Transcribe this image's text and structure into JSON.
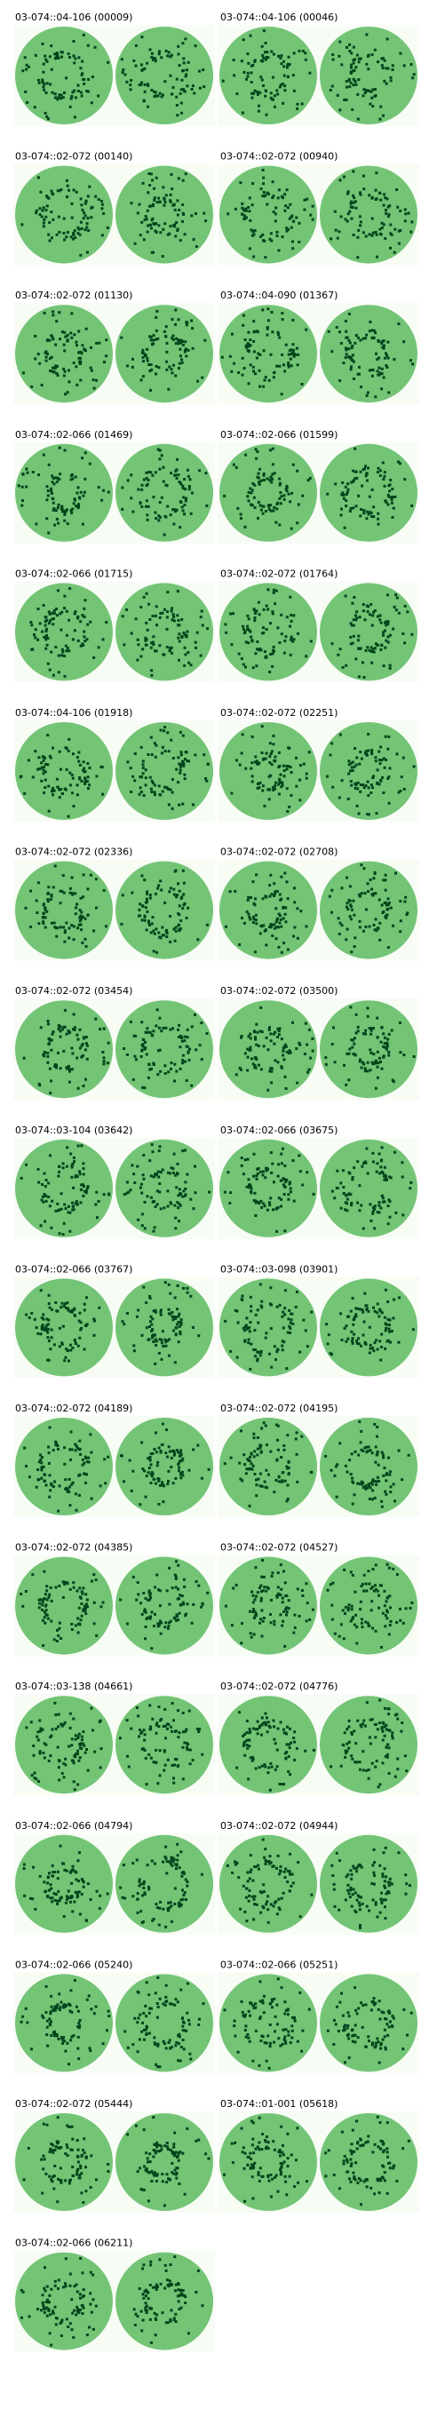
{
  "panels": [
    {
      "label": "03-074::04-106 (00009)"
    },
    {
      "label": "03-074::04-106 (00046)"
    },
    {
      "label": "03-074::02-072 (00140)"
    },
    {
      "label": "03-074::02-072 (00940)"
    },
    {
      "label": "03-074::02-072 (01130)"
    },
    {
      "label": "03-074::04-090 (01367)"
    },
    {
      "label": "03-074::02-066 (01469)"
    },
    {
      "label": "03-074::02-066 (01599)"
    },
    {
      "label": "03-074::02-066 (01715)"
    },
    {
      "label": "03-074::02-072 (01764)"
    },
    {
      "label": "03-074::04-106 (01918)"
    },
    {
      "label": "03-074::02-072 (02251)"
    },
    {
      "label": "03-074::02-072 (02336)"
    },
    {
      "label": "03-074::02-072 (02708)"
    },
    {
      "label": "03-074::02-072 (03454)"
    },
    {
      "label": "03-074::02-072 (03500)"
    },
    {
      "label": "03-074::03-104 (03642)"
    },
    {
      "label": "03-074::02-066 (03675)"
    },
    {
      "label": "03-074::02-066 (03767)"
    },
    {
      "label": "03-074::03-098 (03901)"
    },
    {
      "label": "03-074::02-072 (04189)"
    },
    {
      "label": "03-074::02-072 (04195)"
    },
    {
      "label": "03-074::02-072 (04385)"
    },
    {
      "label": "03-074::02-072 (04527)"
    },
    {
      "label": "03-074::03-138 (04661)"
    },
    {
      "label": "03-074::02-072 (04776)"
    },
    {
      "label": "03-074::02-066 (04794)"
    },
    {
      "label": "03-074::02-072 (04944)"
    },
    {
      "label": "03-074::02-066 (05240)"
    },
    {
      "label": "03-074::02-066 (05251)"
    },
    {
      "label": "03-074::02-072 (05444)"
    },
    {
      "label": "03-074::01-001 (05618)"
    },
    {
      "label": "03-074::02-066 (06211)"
    }
  ]
}
